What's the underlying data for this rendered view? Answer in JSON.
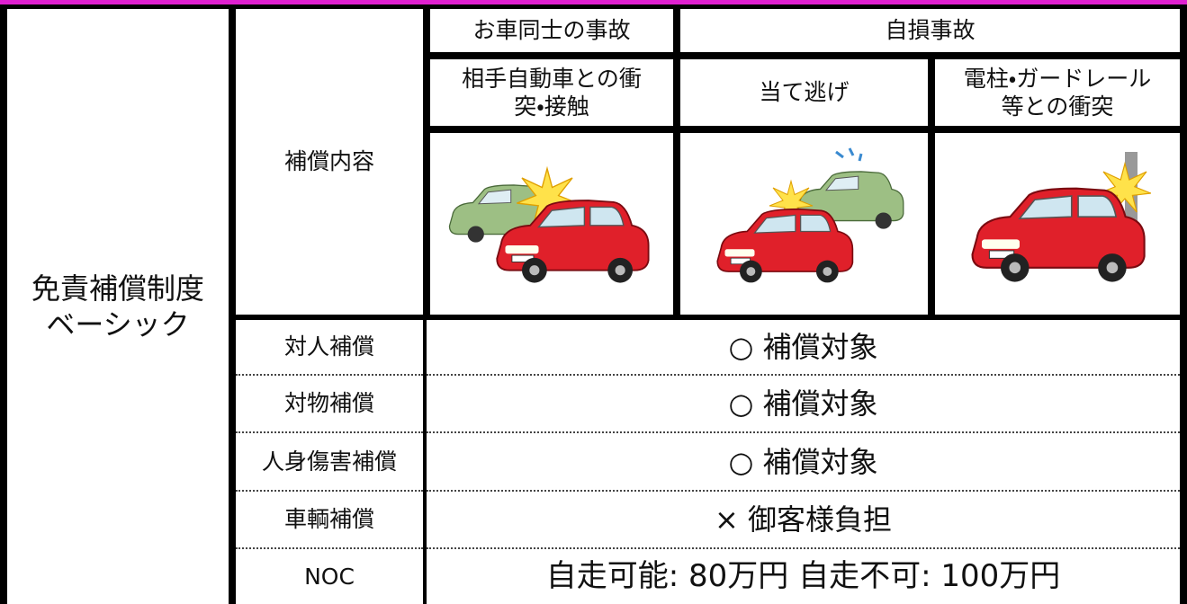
{
  "table": {
    "plan": [
      "免責補償制度",
      "ベーシック"
    ],
    "section": "補償内容",
    "groups": [
      "お車同士の事故",
      "自損事故"
    ],
    "scenarios": [
      [
        "相手自動車との衝",
        "突・接触"
      ],
      [
        "当て逃げ"
      ],
      [
        "電柱・ガードレール",
        "等との衝突"
      ]
    ],
    "rows": [
      [
        "対人補償",
        "○ 補償対象"
      ],
      [
        "対物補償",
        "○ 補償対象"
      ],
      [
        "人身傷害補償",
        "○ 補償対象"
      ],
      [
        "車輌補償",
        "× 御客様負担"
      ],
      [
        "NOC",
        "自走可能: 80万円 自走不可: 100万円"
      ]
    ]
  }
}
